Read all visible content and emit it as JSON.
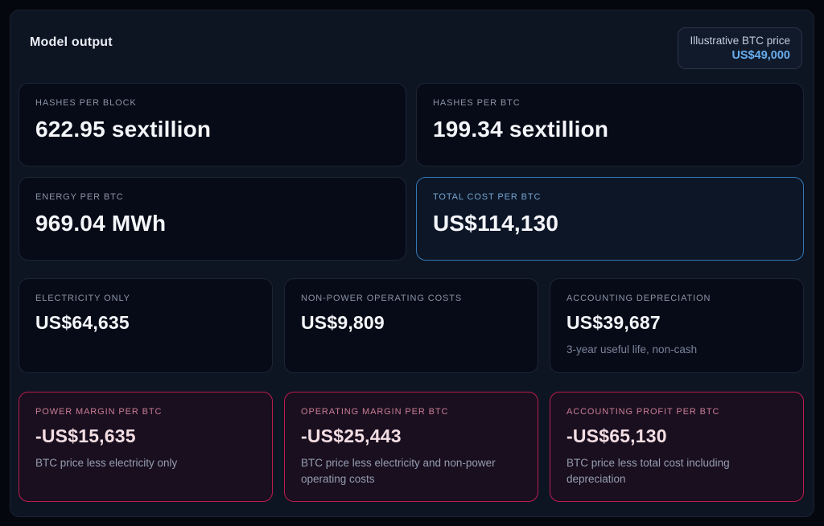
{
  "header": {
    "title": "Model output",
    "badge": {
      "label": "Illustrative BTC price",
      "value": "US$49,000"
    }
  },
  "rows": [
    {
      "cards": [
        {
          "label": "HASHES PER BLOCK",
          "value": "622.95 sextillion"
        },
        {
          "label": "HASHES PER BTC",
          "value": "199.34 sextillion"
        }
      ]
    },
    {
      "cards": [
        {
          "label": "ENERGY PER BTC",
          "value": "969.04 MWh"
        },
        {
          "label": "TOTAL COST PER BTC",
          "value": "US$114,130",
          "highlight": "blue"
        }
      ]
    },
    {
      "cards": [
        {
          "label": "ELECTRICITY ONLY",
          "value": "US$64,635"
        },
        {
          "label": "NON-POWER OPERATING COSTS",
          "value": "US$9,809"
        },
        {
          "label": "ACCOUNTING DEPRECIATION",
          "value": "US$39,687",
          "note": "3-year useful life, non-cash"
        }
      ]
    },
    {
      "cards": [
        {
          "label": "POWER MARGIN PER BTC",
          "value": "-US$15,635",
          "note": "BTC price less electricity only",
          "highlight": "negative"
        },
        {
          "label": "OPERATING MARGIN PER BTC",
          "value": "-US$25,443",
          "note": "BTC price less electricity and non-power operating costs",
          "highlight": "negative"
        },
        {
          "label": "ACCOUNTING PROFIT PER BTC",
          "value": "-US$65,130",
          "note": "BTC price less total cost including depreciation",
          "highlight": "negative"
        }
      ]
    }
  ],
  "colors": {
    "accent_blue": "#3578b4",
    "accent_blue_text": "#68aeef",
    "accent_pink_border": "#bb1d4e",
    "accent_pink_label": "#c87c95",
    "panel_background": "#0d1422",
    "card_background": "#070b17",
    "value_text": "#f4f6fa",
    "label_text": "#8a94a6"
  }
}
